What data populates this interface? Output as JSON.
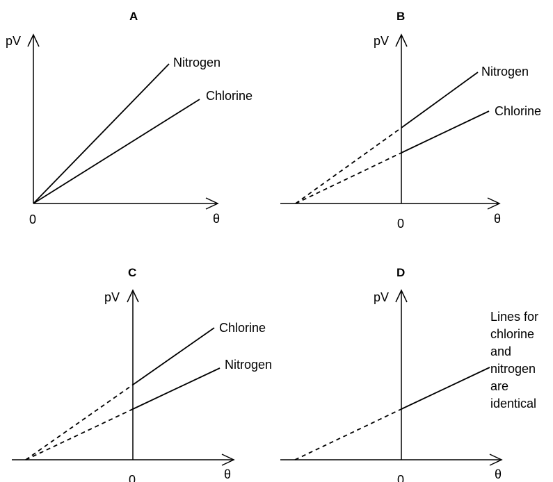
{
  "panels": {
    "A": {
      "title": "A",
      "y_axis": "pV",
      "x_axis": "θ",
      "origin": "0",
      "line1": "Nitrogen",
      "line2": "Chlorine"
    },
    "B": {
      "title": "B",
      "y_axis": "pV",
      "x_axis": "θ",
      "origin": "0",
      "line1": "Nitrogen",
      "line2": "Chlorine"
    },
    "C": {
      "title": "C",
      "y_axis": "pV",
      "x_axis": "θ",
      "origin": "0",
      "line1": "Chlorine",
      "line2": "Nitrogen"
    },
    "D": {
      "title": "D",
      "y_axis": "pV",
      "x_axis": "θ",
      "origin": "0",
      "note_lines": [
        "Lines for",
        "chlorine",
        "and",
        "nitrogen",
        "are",
        "identical"
      ]
    }
  }
}
